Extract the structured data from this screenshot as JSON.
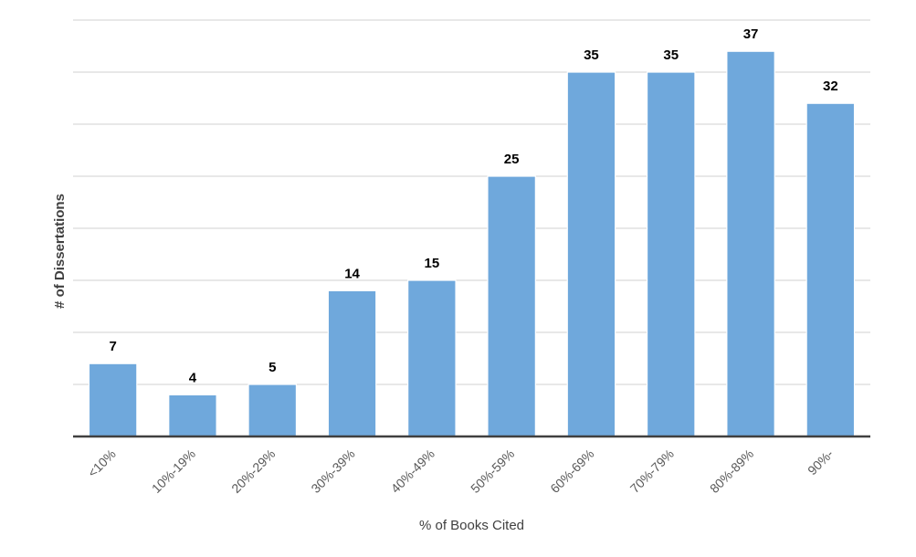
{
  "chart_data": {
    "type": "bar",
    "title": "",
    "xlabel": "% of Books Cited",
    "ylabel": "# of Dissertations",
    "categories": [
      "<10%",
      "10%-19%",
      "20%-29%",
      "30%-39%",
      "40%-49%",
      "50%-59%",
      "60%-69%",
      "70%-79%",
      "80%-89%",
      "90%-"
    ],
    "values": [
      7,
      4,
      5,
      14,
      15,
      25,
      35,
      35,
      37,
      32
    ],
    "ylim": [
      0,
      40
    ],
    "ytick_step": 5,
    "grid": true,
    "y_tick_labels_shown": false,
    "data_labels": true,
    "colors": {
      "bar": "#6fa8dc",
      "grid": "#d9d9d9",
      "axis": "#404040"
    }
  }
}
